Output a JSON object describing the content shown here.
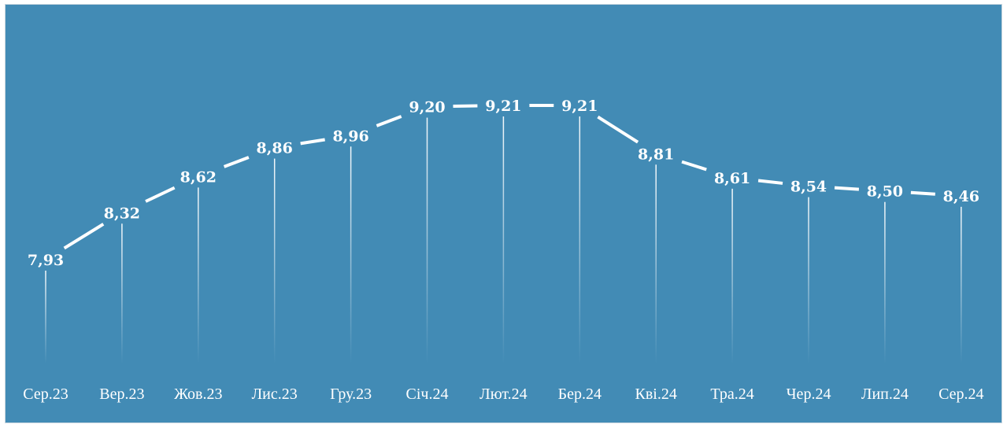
{
  "chart_data": {
    "type": "line",
    "categories": [
      "Сер.23",
      "Вер.23",
      "Жов.23",
      "Лис.23",
      "Гру.23",
      "Січ.24",
      "Лют.24",
      "Бер.24",
      "Кві.24",
      "Тра.24",
      "Чер.24",
      "Лип.24",
      "Сер.24"
    ],
    "values": [
      7.93,
      8.32,
      8.62,
      8.86,
      8.96,
      9.2,
      9.21,
      9.21,
      8.81,
      8.61,
      8.54,
      8.5,
      8.46
    ],
    "data_labels": [
      "7,93",
      "8,32",
      "8,62",
      "8,86",
      "8,96",
      "9,20",
      "9,21",
      "9,21",
      "8,81",
      "8,61",
      "8,54",
      "8,50",
      "8,46"
    ],
    "series_color": "#ffffff",
    "background_color": "#428bb5",
    "drop_lines": true,
    "grid": false,
    "legend": "none"
  }
}
